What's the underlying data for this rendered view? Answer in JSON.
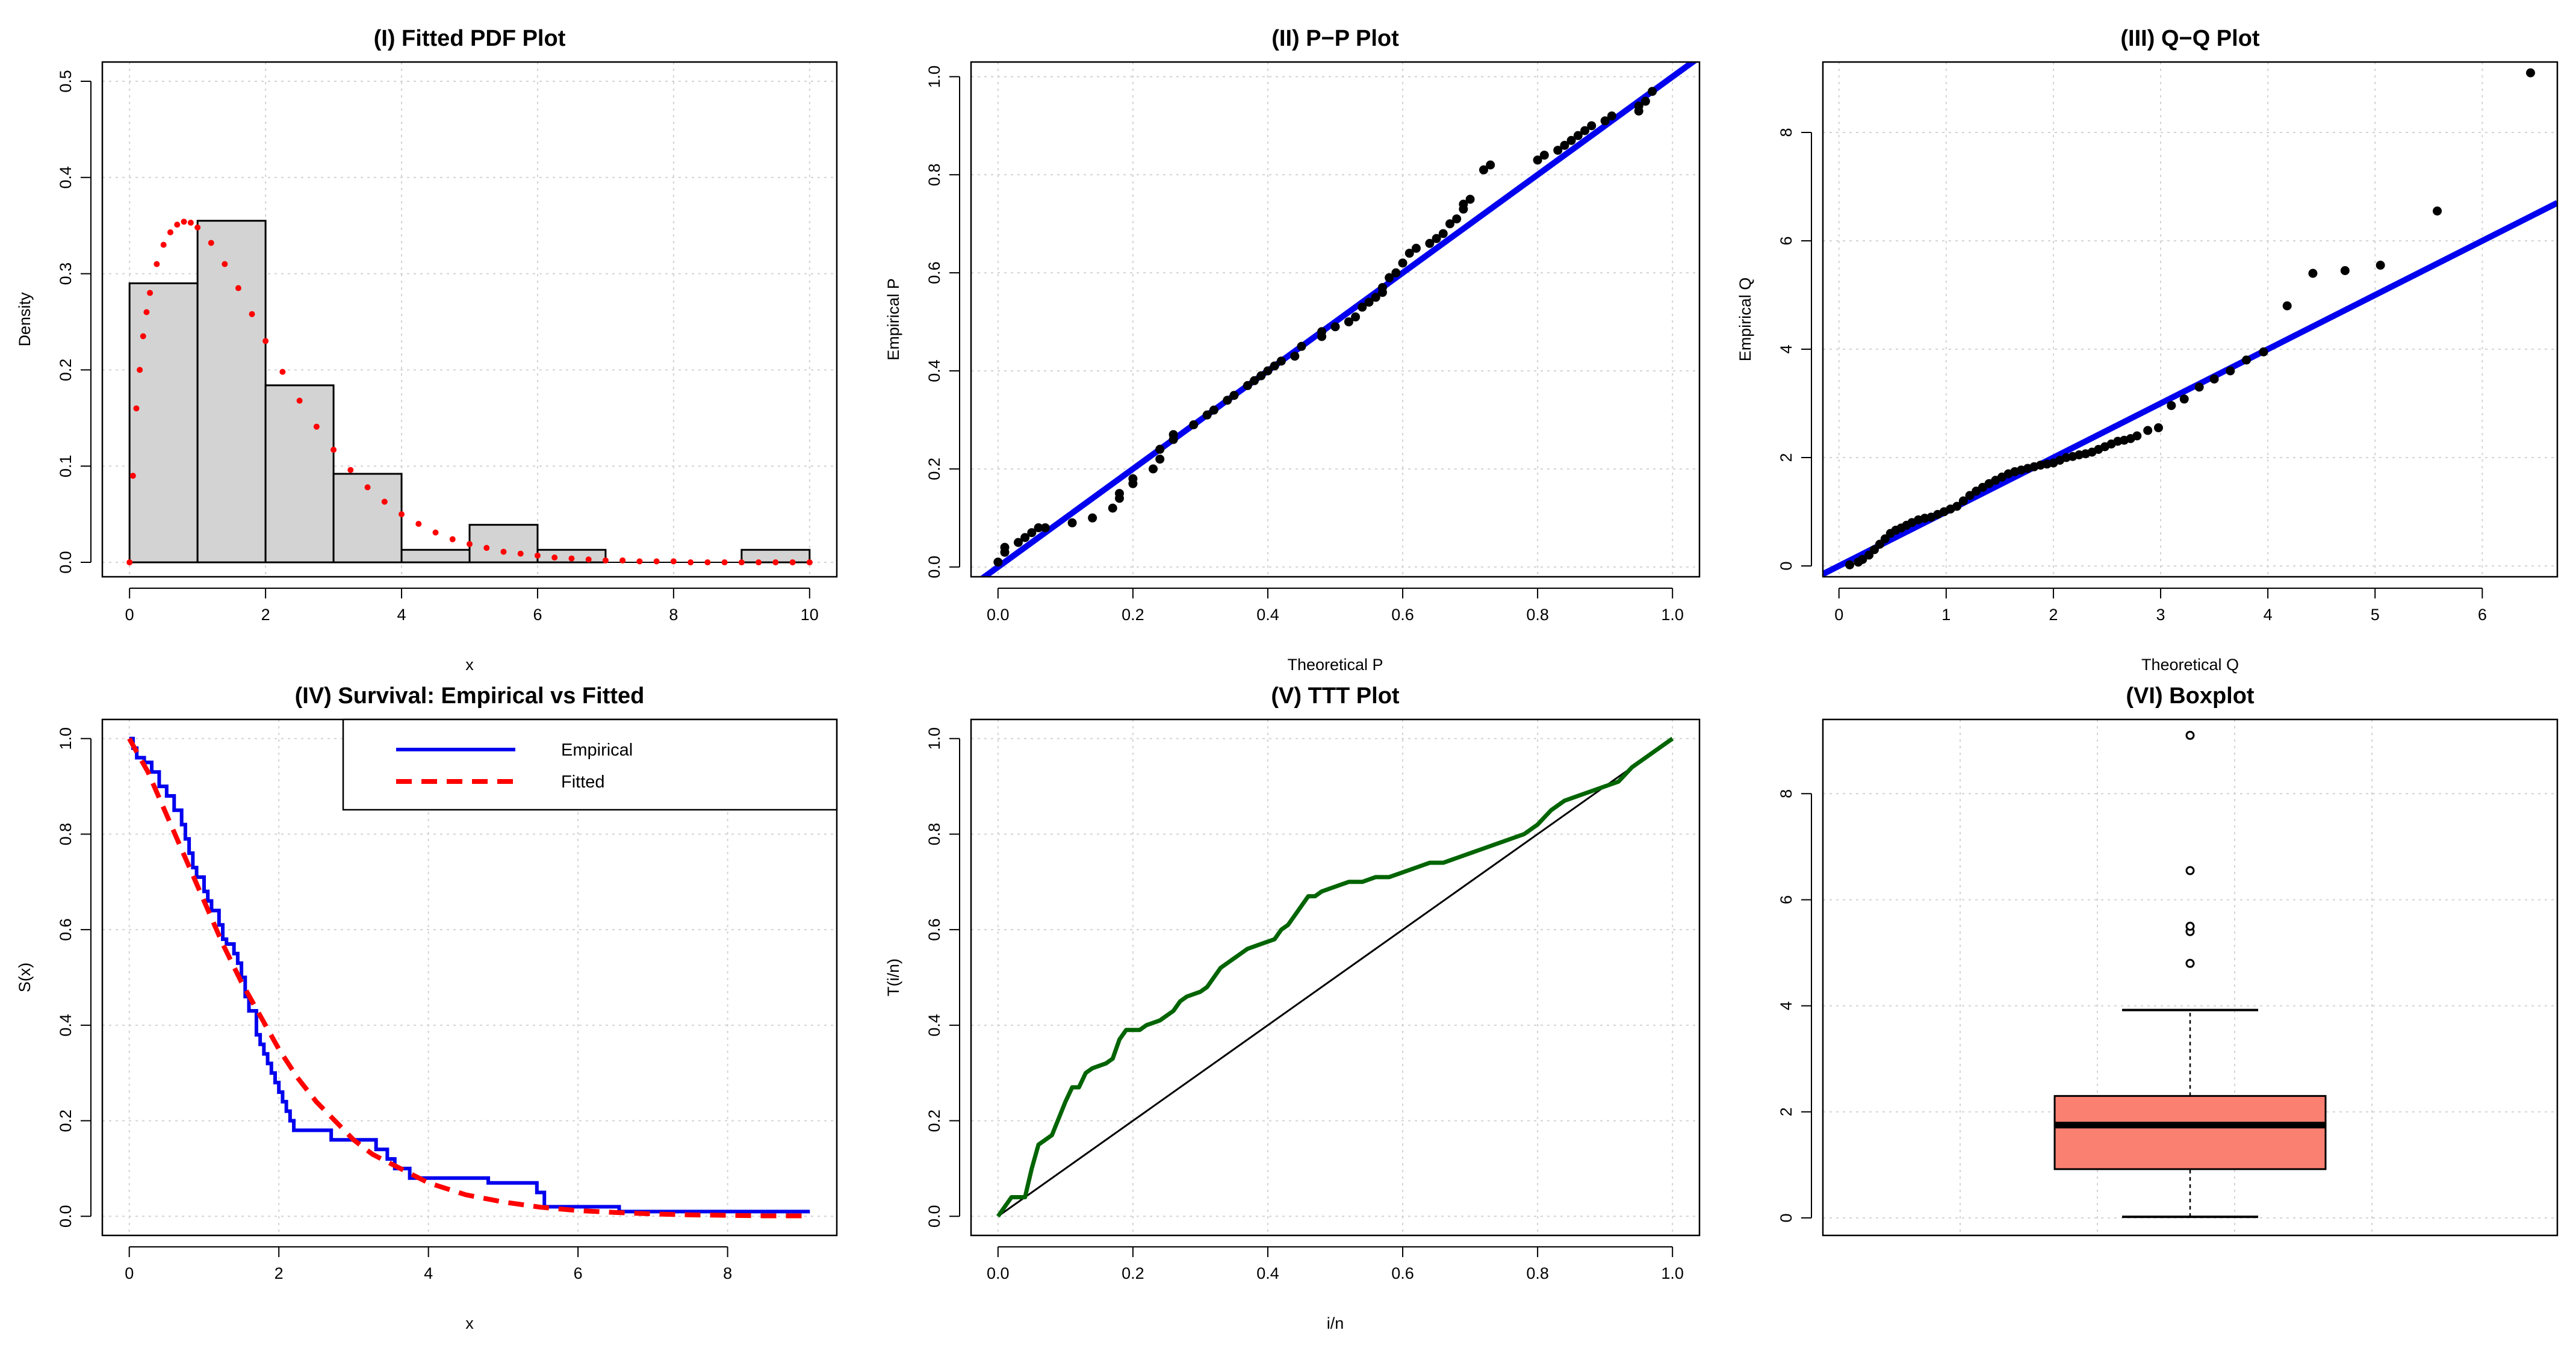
{
  "chart_data": [
    {
      "id": "pdf",
      "type": "histogram",
      "title": "(I) Fitted PDF Plot",
      "xlabel": "x",
      "ylabel": "Density",
      "xlim": [
        -0.4,
        10.4
      ],
      "ylim": [
        -0.015,
        0.52
      ],
      "xticks": [
        0,
        2,
        4,
        6,
        8,
        10
      ],
      "yticks": [
        0.0,
        0.1,
        0.2,
        0.3,
        0.4,
        0.5
      ],
      "ytick_labels": [
        "0.0",
        "0.1",
        "0.2",
        "0.3",
        "0.4",
        "0.5"
      ],
      "bins": [
        {
          "x0": 0,
          "x1": 1,
          "density": 0.29
        },
        {
          "x0": 1,
          "x1": 2,
          "density": 0.355
        },
        {
          "x0": 2,
          "x1": 3,
          "density": 0.184
        },
        {
          "x0": 3,
          "x1": 4,
          "density": 0.092
        },
        {
          "x0": 4,
          "x1": 5,
          "density": 0.013
        },
        {
          "x0": 5,
          "x1": 6,
          "density": 0.039
        },
        {
          "x0": 6,
          "x1": 7,
          "density": 0.013
        },
        {
          "x0": 7,
          "x1": 8,
          "density": 0.0
        },
        {
          "x0": 8,
          "x1": 9,
          "density": 0.0
        },
        {
          "x0": 9,
          "x1": 10,
          "density": 0.013
        }
      ],
      "fitted_pdf": {
        "name": "Fitted",
        "color": "#ff0000",
        "x": [
          0.0,
          0.05,
          0.1,
          0.15,
          0.2,
          0.25,
          0.3,
          0.4,
          0.5,
          0.6,
          0.7,
          0.8,
          0.9,
          1.0,
          1.2,
          1.4,
          1.6,
          1.8,
          2.0,
          2.25,
          2.5,
          2.75,
          3.0,
          3.25,
          3.5,
          3.75,
          4.0,
          4.25,
          4.5,
          4.75,
          5.0,
          5.25,
          5.5,
          5.75,
          6.0,
          6.25,
          6.5,
          6.75,
          7.0,
          7.25,
          7.5,
          7.75,
          8.0,
          8.25,
          8.5,
          8.75,
          9.0,
          9.25,
          9.5,
          9.75,
          10.0
        ],
        "y": [
          0.0,
          0.09,
          0.16,
          0.2,
          0.235,
          0.26,
          0.28,
          0.31,
          0.33,
          0.343,
          0.351,
          0.354,
          0.353,
          0.348,
          0.332,
          0.31,
          0.285,
          0.258,
          0.23,
          0.198,
          0.168,
          0.141,
          0.117,
          0.096,
          0.078,
          0.063,
          0.05,
          0.04,
          0.031,
          0.024,
          0.019,
          0.015,
          0.011,
          0.009,
          0.007,
          0.005,
          0.004,
          0.003,
          0.002,
          0.002,
          0.001,
          0.001,
          0.001,
          0.0,
          0.0,
          0.0,
          0.0,
          0.0,
          0.0,
          0.0,
          0.0
        ]
      }
    },
    {
      "id": "pp",
      "type": "scatter",
      "title": "(II) P−P Plot",
      "xlabel": "Theoretical P",
      "ylabel": "Empirical P",
      "xlim": [
        -0.04,
        1.04
      ],
      "ylim": [
        -0.02,
        1.03
      ],
      "xticks": [
        0.0,
        0.2,
        0.4,
        0.6,
        0.8,
        1.0
      ],
      "xtick_labels": [
        "0.0",
        "0.2",
        "0.4",
        "0.6",
        "0.8",
        "1.0"
      ],
      "yticks": [
        0.0,
        0.2,
        0.4,
        0.6,
        0.8,
        1.0
      ],
      "ytick_labels": [
        "0.0",
        "0.2",
        "0.4",
        "0.6",
        "0.8",
        "1.0"
      ],
      "reference_line": {
        "intercept": 0,
        "slope": 1,
        "color": "#0000ee"
      },
      "points": {
        "x": [
          0.0,
          0.01,
          0.01,
          0.03,
          0.04,
          0.05,
          0.06,
          0.07,
          0.11,
          0.14,
          0.17,
          0.18,
          0.18,
          0.2,
          0.2,
          0.23,
          0.24,
          0.24,
          0.26,
          0.26,
          0.29,
          0.31,
          0.32,
          0.34,
          0.35,
          0.37,
          0.38,
          0.39,
          0.4,
          0.41,
          0.42,
          0.44,
          0.45,
          0.48,
          0.48,
          0.5,
          0.52,
          0.53,
          0.54,
          0.55,
          0.56,
          0.57,
          0.57,
          0.58,
          0.59,
          0.6,
          0.61,
          0.62,
          0.64,
          0.65,
          0.66,
          0.67,
          0.68,
          0.69,
          0.69,
          0.7,
          0.72,
          0.73,
          0.8,
          0.81,
          0.83,
          0.84,
          0.85,
          0.86,
          0.87,
          0.88,
          0.9,
          0.91,
          0.95,
          0.95,
          0.96,
          0.97
        ],
        "y": [
          0.01,
          0.03,
          0.04,
          0.05,
          0.06,
          0.07,
          0.08,
          0.08,
          0.09,
          0.1,
          0.12,
          0.14,
          0.15,
          0.17,
          0.18,
          0.2,
          0.22,
          0.24,
          0.26,
          0.27,
          0.29,
          0.31,
          0.32,
          0.34,
          0.35,
          0.37,
          0.38,
          0.39,
          0.4,
          0.41,
          0.42,
          0.43,
          0.45,
          0.47,
          0.48,
          0.49,
          0.5,
          0.51,
          0.53,
          0.54,
          0.55,
          0.56,
          0.57,
          0.59,
          0.6,
          0.62,
          0.64,
          0.65,
          0.66,
          0.67,
          0.68,
          0.7,
          0.71,
          0.73,
          0.74,
          0.75,
          0.81,
          0.82,
          0.83,
          0.84,
          0.85,
          0.86,
          0.87,
          0.88,
          0.89,
          0.9,
          0.91,
          0.92,
          0.93,
          0.94,
          0.95,
          0.97
        ]
      }
    },
    {
      "id": "qq",
      "type": "scatter",
      "title": "(III) Q−Q Plot",
      "xlabel": "Theoretical Q",
      "ylabel": "Empirical Q",
      "xlim": [
        -0.15,
        6.7
      ],
      "ylim": [
        -0.2,
        9.3
      ],
      "xticks": [
        0,
        1,
        2,
        3,
        4,
        5,
        6
      ],
      "yticks": [
        0,
        2,
        4,
        6,
        8
      ],
      "reference_line": {
        "intercept": 0,
        "slope": 1,
        "color": "#0000ee"
      },
      "points": {
        "x": [
          0.1,
          0.18,
          0.22,
          0.28,
          0.33,
          0.38,
          0.43,
          0.48,
          0.53,
          0.58,
          0.63,
          0.68,
          0.74,
          0.8,
          0.86,
          0.92,
          0.98,
          1.04,
          1.1,
          1.16,
          1.22,
          1.28,
          1.34,
          1.4,
          1.46,
          1.52,
          1.58,
          1.64,
          1.7,
          1.76,
          1.82,
          1.88,
          1.94,
          2.0,
          2.06,
          2.12,
          2.18,
          2.24,
          2.3,
          2.36,
          2.42,
          2.48,
          2.54,
          2.6,
          2.66,
          2.72,
          2.78,
          2.88,
          2.98,
          3.1,
          3.22,
          3.36,
          3.5,
          3.65,
          3.8,
          3.96,
          4.18,
          4.42,
          4.72,
          5.05,
          5.58,
          6.45
        ],
        "y": [
          0.02,
          0.07,
          0.12,
          0.2,
          0.3,
          0.4,
          0.5,
          0.6,
          0.66,
          0.7,
          0.75,
          0.8,
          0.85,
          0.88,
          0.9,
          0.95,
          1.0,
          1.05,
          1.1,
          1.2,
          1.3,
          1.38,
          1.45,
          1.52,
          1.58,
          1.64,
          1.7,
          1.74,
          1.77,
          1.8,
          1.83,
          1.86,
          1.88,
          1.9,
          1.95,
          2.0,
          2.02,
          2.05,
          2.07,
          2.1,
          2.15,
          2.2,
          2.25,
          2.3,
          2.32,
          2.35,
          2.4,
          2.5,
          2.55,
          2.96,
          3.08,
          3.3,
          3.45,
          3.6,
          3.8,
          3.95,
          4.8,
          5.4,
          5.45,
          5.55,
          6.55,
          9.1
        ]
      }
    },
    {
      "id": "surv",
      "type": "line",
      "title": "(IV) Survival: Empirical vs Fitted",
      "xlabel": "x",
      "ylabel": "S(x)",
      "xlim": [
        -0.36,
        9.46
      ],
      "ylim": [
        -0.04,
        1.04
      ],
      "xticks": [
        0,
        2,
        4,
        6,
        8
      ],
      "yticks": [
        0.0,
        0.2,
        0.4,
        0.6,
        0.8,
        1.0
      ],
      "ytick_labels": [
        "0.0",
        "0.2",
        "0.4",
        "0.6",
        "0.8",
        "1.0"
      ],
      "legend": {
        "position": "top-right",
        "entries": [
          "Empirical",
          "Fitted"
        ]
      },
      "series": [
        {
          "name": "Empirical",
          "style": "step",
          "color": "#0000ee",
          "x": [
            0.0,
            0.05,
            0.1,
            0.2,
            0.3,
            0.4,
            0.5,
            0.6,
            0.7,
            0.75,
            0.8,
            0.85,
            0.9,
            1.0,
            1.05,
            1.1,
            1.2,
            1.25,
            1.3,
            1.4,
            1.45,
            1.5,
            1.55,
            1.6,
            1.7,
            1.75,
            1.8,
            1.85,
            1.9,
            1.95,
            2.0,
            2.05,
            2.1,
            2.15,
            2.2,
            2.25,
            2.3,
            2.4,
            2.55,
            2.7,
            3.0,
            3.3,
            3.45,
            3.55,
            3.75,
            4.25,
            4.8,
            5.45,
            5.55,
            6.55,
            9.1
          ],
          "y": [
            1.0,
            0.98,
            0.96,
            0.95,
            0.93,
            0.9,
            0.88,
            0.85,
            0.82,
            0.79,
            0.76,
            0.73,
            0.71,
            0.68,
            0.66,
            0.64,
            0.61,
            0.58,
            0.57,
            0.55,
            0.53,
            0.5,
            0.46,
            0.43,
            0.38,
            0.36,
            0.34,
            0.32,
            0.3,
            0.28,
            0.26,
            0.24,
            0.22,
            0.2,
            0.18,
            0.18,
            0.18,
            0.18,
            0.18,
            0.16,
            0.16,
            0.14,
            0.12,
            0.1,
            0.08,
            0.08,
            0.07,
            0.05,
            0.02,
            0.01,
            0.01
          ]
        },
        {
          "name": "Fitted",
          "style": "dashed",
          "color": "#ff0000",
          "x": [
            0.0,
            0.25,
            0.5,
            0.75,
            1.0,
            1.25,
            1.5,
            1.75,
            2.0,
            2.25,
            2.5,
            2.75,
            3.0,
            3.25,
            3.5,
            3.75,
            4.0,
            4.5,
            5.0,
            5.5,
            6.0,
            6.5,
            7.0,
            7.5,
            8.0,
            8.5,
            9.0
          ],
          "y": [
            1.0,
            0.93,
            0.84,
            0.75,
            0.66,
            0.57,
            0.49,
            0.42,
            0.35,
            0.29,
            0.24,
            0.2,
            0.16,
            0.13,
            0.11,
            0.09,
            0.07,
            0.045,
            0.03,
            0.019,
            0.012,
            0.008,
            0.005,
            0.003,
            0.002,
            0.001,
            0.001
          ]
        }
      ]
    },
    {
      "id": "ttt",
      "type": "line",
      "title": "(V) TTT Plot",
      "xlabel": "i/n",
      "ylabel": "T(i/n)",
      "xlim": [
        -0.04,
        1.04
      ],
      "ylim": [
        -0.04,
        1.04
      ],
      "xticks": [
        0.0,
        0.2,
        0.4,
        0.6,
        0.8,
        1.0
      ],
      "xtick_labels": [
        "0.0",
        "0.2",
        "0.4",
        "0.6",
        "0.8",
        "1.0"
      ],
      "yticks": [
        0.0,
        0.2,
        0.4,
        0.6,
        0.8,
        1.0
      ],
      "ytick_labels": [
        "0.0",
        "0.2",
        "0.4",
        "0.6",
        "0.8",
        "1.0"
      ],
      "reference_line": {
        "intercept": 0,
        "slope": 1,
        "color": "#000000"
      },
      "series": [
        {
          "name": "TTT",
          "color": "#006400",
          "x": [
            0.0,
            0.02,
            0.04,
            0.05,
            0.06,
            0.08,
            0.1,
            0.11,
            0.12,
            0.13,
            0.14,
            0.16,
            0.17,
            0.18,
            0.19,
            0.2,
            0.21,
            0.22,
            0.24,
            0.25,
            0.26,
            0.27,
            0.28,
            0.3,
            0.31,
            0.32,
            0.33,
            0.34,
            0.35,
            0.36,
            0.37,
            0.39,
            0.41,
            0.42,
            0.43,
            0.44,
            0.45,
            0.46,
            0.47,
            0.48,
            0.5,
            0.52,
            0.54,
            0.56,
            0.58,
            0.6,
            0.62,
            0.64,
            0.66,
            0.68,
            0.7,
            0.72,
            0.74,
            0.76,
            0.78,
            0.8,
            0.82,
            0.84,
            0.86,
            0.88,
            0.9,
            0.92,
            0.94,
            0.96,
            0.98,
            1.0
          ],
          "y": [
            0.0,
            0.04,
            0.04,
            0.1,
            0.15,
            0.17,
            0.24,
            0.27,
            0.27,
            0.3,
            0.31,
            0.32,
            0.33,
            0.37,
            0.39,
            0.39,
            0.39,
            0.4,
            0.41,
            0.42,
            0.43,
            0.45,
            0.46,
            0.47,
            0.48,
            0.5,
            0.52,
            0.53,
            0.54,
            0.55,
            0.56,
            0.57,
            0.58,
            0.6,
            0.61,
            0.63,
            0.65,
            0.67,
            0.67,
            0.68,
            0.69,
            0.7,
            0.7,
            0.71,
            0.71,
            0.72,
            0.73,
            0.74,
            0.74,
            0.75,
            0.76,
            0.77,
            0.78,
            0.79,
            0.8,
            0.82,
            0.85,
            0.87,
            0.88,
            0.89,
            0.9,
            0.91,
            0.94,
            0.96,
            0.98,
            1.0
          ]
        }
      ]
    },
    {
      "id": "box",
      "type": "boxplot",
      "title": "(VI) Boxplot",
      "ylim": [
        -0.33,
        9.4
      ],
      "yticks": [
        0,
        2,
        4,
        6,
        8
      ],
      "box": {
        "min": 0.02,
        "q1": 0.92,
        "median": 1.75,
        "q3": 2.3,
        "max": 3.92,
        "fill": "#fa8072"
      },
      "outliers": [
        4.8,
        5.4,
        5.5,
        6.55,
        9.1
      ]
    }
  ]
}
